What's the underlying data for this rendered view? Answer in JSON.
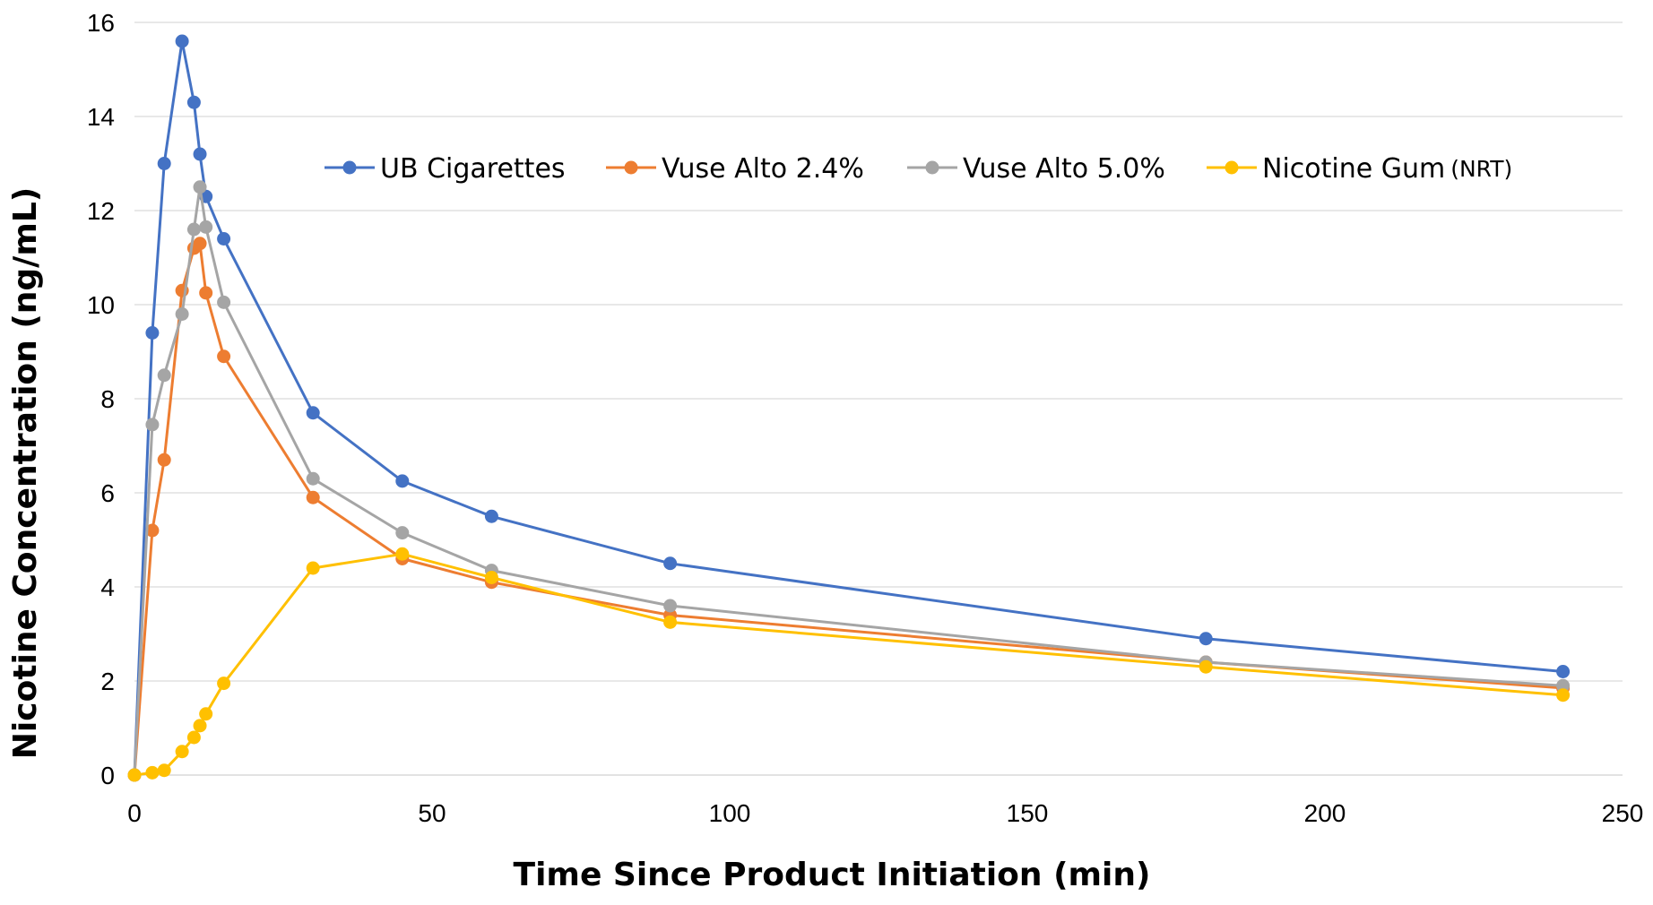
{
  "chart_data": {
    "type": "line",
    "xlabel": "Time Since Product Initiation (min)",
    "ylabel": "Nicotine Concentration (ng/mL)",
    "xlim": [
      0,
      250
    ],
    "ylim": [
      0,
      16
    ],
    "xticks": [
      0,
      50,
      100,
      150,
      200,
      250
    ],
    "yticks": [
      0,
      2,
      4,
      6,
      8,
      10,
      12,
      14,
      16
    ],
    "grid": "horizontal",
    "legend_position": "top-right",
    "series": [
      {
        "name": "UB Cigarettes",
        "color": "#4472C4",
        "x": [
          0,
          3,
          5,
          8,
          10,
          11,
          12,
          15,
          30,
          45,
          60,
          90,
          180,
          240
        ],
        "y": [
          0,
          9.4,
          13.0,
          15.6,
          14.3,
          13.2,
          12.3,
          11.4,
          7.7,
          6.25,
          5.5,
          4.5,
          2.9,
          2.2
        ]
      },
      {
        "name": "Vuse Alto 2.4%",
        "color": "#ED7D31",
        "x": [
          0,
          3,
          5,
          8,
          10,
          11,
          12,
          15,
          30,
          45,
          60,
          90,
          180,
          240
        ],
        "y": [
          0,
          5.2,
          6.7,
          10.3,
          11.2,
          11.3,
          10.25,
          8.9,
          5.9,
          4.6,
          4.1,
          3.4,
          2.4,
          1.85
        ]
      },
      {
        "name": "Vuse Alto 5.0%",
        "color": "#A5A5A5",
        "x": [
          0,
          3,
          5,
          8,
          10,
          11,
          12,
          15,
          30,
          45,
          60,
          90,
          180,
          240
        ],
        "y": [
          0,
          7.45,
          8.5,
          9.8,
          11.6,
          12.5,
          11.65,
          10.05,
          6.3,
          5.15,
          4.35,
          3.6,
          2.4,
          1.9
        ]
      },
      {
        "name": "Nicotine Gum",
        "name_suffix": "(NRT)",
        "color": "#FFC000",
        "x": [
          0,
          3,
          5,
          8,
          10,
          11,
          12,
          15,
          30,
          45,
          60,
          90,
          180,
          240
        ],
        "y": [
          0,
          0.05,
          0.1,
          0.5,
          0.8,
          1.05,
          1.3,
          1.95,
          4.4,
          4.7,
          4.2,
          3.25,
          2.3,
          1.7
        ]
      }
    ]
  }
}
